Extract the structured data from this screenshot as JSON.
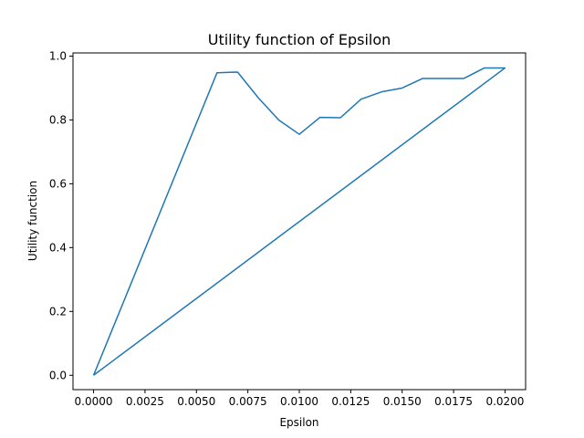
{
  "chart_data": {
    "type": "line",
    "title": "Utility function of Epsilon",
    "xlabel": "Epsilon",
    "ylabel": "Utility function",
    "xlim": [
      -0.001,
      0.021
    ],
    "ylim": [
      -0.045,
      1.01
    ],
    "xticks": [
      0.0,
      0.0025,
      0.005,
      0.0075,
      0.01,
      0.0125,
      0.015,
      0.0175,
      0.02
    ],
    "xtick_labels": [
      "0.0000",
      "0.0025",
      "0.0050",
      "0.0075",
      "0.0100",
      "0.0125",
      "0.0150",
      "0.0175",
      "0.0200"
    ],
    "yticks": [
      0.0,
      0.2,
      0.4,
      0.6,
      0.8,
      1.0
    ],
    "ytick_labels": [
      "0.0",
      "0.2",
      "0.4",
      "0.6",
      "0.8",
      "1.0"
    ],
    "grid": false,
    "series": [
      {
        "color": "#1f77b4",
        "x": [
          0.0,
          0.006,
          0.007,
          0.008,
          0.009,
          0.01,
          0.011,
          0.012,
          0.013,
          0.014,
          0.015,
          0.016,
          0.017,
          0.018,
          0.019,
          0.02,
          0.0
        ],
        "y": [
          0.0,
          0.948,
          0.95,
          0.87,
          0.8,
          0.755,
          0.808,
          0.807,
          0.865,
          0.888,
          0.9,
          0.93,
          0.93,
          0.93,
          0.963,
          0.963,
          0.0
        ]
      }
    ]
  }
}
